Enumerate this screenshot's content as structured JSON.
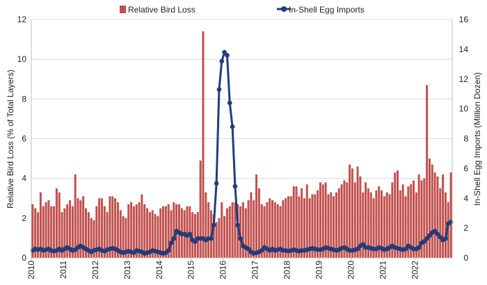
{
  "chart_data": {
    "type": "bar+line",
    "title": "",
    "x_tick_labels": [
      "2010",
      "2011",
      "2012",
      "2013",
      "2014",
      "2015",
      "2016",
      "2017",
      "2018",
      "2019",
      "2020",
      "2021",
      "2022"
    ],
    "y_left": {
      "label": "Relative Bird Loss (% of Total Layers)",
      "ylim": [
        0,
        12
      ],
      "ticks": [
        "0",
        "2",
        "4",
        "6",
        "8",
        "10",
        "12"
      ]
    },
    "y_right": {
      "label": "In-Shell Egg Imports (Million Dozen)",
      "ylim": [
        0,
        16
      ],
      "ticks": [
        "0",
        "2",
        "4",
        "6",
        "8",
        "10",
        "12",
        "14",
        "16"
      ]
    },
    "legend": {
      "placement": "top",
      "items": [
        "Relative Bird Loss",
        "In-Shell Egg Imports"
      ]
    },
    "colors": {
      "bars": "#c0504d",
      "line": "#1f3d7a",
      "grid": "#d9d9d9"
    },
    "series": [
      {
        "name": "Relative Bird Loss",
        "kind": "bar",
        "axis": "left",
        "values": [
          2.7,
          2.5,
          2.3,
          3.3,
          2.6,
          2.8,
          2.9,
          2.6,
          2.6,
          3.5,
          3.3,
          2.3,
          2.5,
          2.7,
          2.9,
          2.6,
          4.2,
          3.0,
          2.9,
          3.1,
          2.5,
          2.3,
          2.0,
          1.9,
          2.6,
          3.0,
          3.0,
          2.6,
          2.3,
          3.1,
          3.1,
          3.0,
          2.8,
          2.4,
          2.1,
          2.0,
          2.7,
          2.8,
          2.6,
          2.7,
          2.8,
          3.2,
          2.7,
          2.5,
          2.3,
          2.4,
          2.2,
          2.1,
          2.5,
          2.6,
          2.6,
          2.7,
          2.4,
          2.8,
          2.7,
          2.7,
          2.5,
          2.4,
          2.6,
          2.6,
          2.3,
          2.2,
          2.3,
          4.9,
          11.4,
          3.3,
          2.8,
          2.4,
          2.2,
          1.8,
          2.0,
          2.8,
          2.1,
          2.5,
          2.6,
          2.8,
          2.8,
          2.7,
          2.6,
          2.8,
          2.5,
          2.9,
          3.3,
          2.9,
          4.2,
          3.5,
          2.7,
          2.6,
          2.8,
          3.0,
          2.9,
          2.8,
          2.7,
          2.6,
          2.9,
          3.0,
          3.1,
          3.1,
          3.6,
          3.6,
          3.1,
          3.5,
          3.0,
          3.7,
          3.0,
          3.2,
          3.2,
          3.4,
          3.8,
          3.7,
          3.8,
          3.2,
          3.3,
          3.1,
          3.3,
          3.5,
          3.7,
          3.9,
          3.8,
          4.7,
          4.5,
          3.8,
          4.6,
          4.1,
          3.3,
          3.8,
          3.5,
          3.3,
          3.0,
          3.4,
          3.6,
          3.4,
          3.1,
          3.3,
          3.2,
          3.8,
          4.3,
          4.4,
          3.4,
          3.7,
          3.1,
          3.6,
          3.7,
          3.9,
          3.3,
          4.2,
          3.9,
          4.0,
          8.7,
          5.0,
          4.7,
          4.3,
          4.1,
          3.5,
          4.2,
          3.3,
          2.8,
          4.3
        ]
      },
      {
        "name": "In-Shell Egg Imports",
        "kind": "line",
        "axis": "right",
        "values": [
          0.5,
          0.6,
          0.55,
          0.6,
          0.5,
          0.55,
          0.6,
          0.5,
          0.45,
          0.5,
          0.6,
          0.5,
          0.6,
          0.7,
          0.6,
          0.5,
          0.55,
          0.7,
          0.8,
          0.7,
          0.6,
          0.5,
          0.4,
          0.5,
          0.55,
          0.6,
          0.5,
          0.45,
          0.55,
          0.6,
          0.65,
          0.6,
          0.5,
          0.4,
          0.35,
          0.4,
          0.45,
          0.4,
          0.35,
          0.5,
          0.45,
          0.4,
          0.3,
          0.35,
          0.4,
          0.5,
          0.45,
          0.4,
          0.35,
          0.3,
          0.35,
          0.5,
          1.0,
          1.3,
          1.8,
          1.7,
          1.6,
          1.6,
          1.5,
          1.6,
          1.2,
          1.1,
          1.3,
          1.3,
          1.3,
          1.2,
          1.3,
          1.3,
          2.2,
          5.0,
          11.3,
          13.2,
          13.8,
          13.6,
          10.4,
          8.8,
          4.8,
          2.2,
          1.3,
          0.8,
          0.7,
          0.6,
          0.4,
          0.3,
          0.35,
          0.4,
          0.5,
          0.7,
          0.6,
          0.5,
          0.6,
          0.5,
          0.55,
          0.6,
          0.5,
          0.5,
          0.45,
          0.5,
          0.55,
          0.5,
          0.45,
          0.5,
          0.5,
          0.55,
          0.6,
          0.65,
          0.6,
          0.55,
          0.55,
          0.6,
          0.7,
          0.65,
          0.6,
          0.55,
          0.5,
          0.55,
          0.65,
          0.7,
          0.6,
          0.5,
          0.5,
          0.55,
          0.6,
          0.8,
          0.9,
          0.7,
          0.7,
          0.65,
          0.6,
          0.6,
          0.7,
          0.65,
          0.55,
          0.6,
          0.7,
          0.8,
          0.7,
          0.65,
          0.6,
          0.55,
          0.6,
          0.8,
          0.7,
          0.6,
          0.6,
          0.7,
          1.0,
          1.1,
          1.3,
          1.5,
          1.7,
          1.8,
          1.6,
          1.4,
          1.2,
          1.3,
          2.3,
          2.4
        ]
      }
    ]
  }
}
